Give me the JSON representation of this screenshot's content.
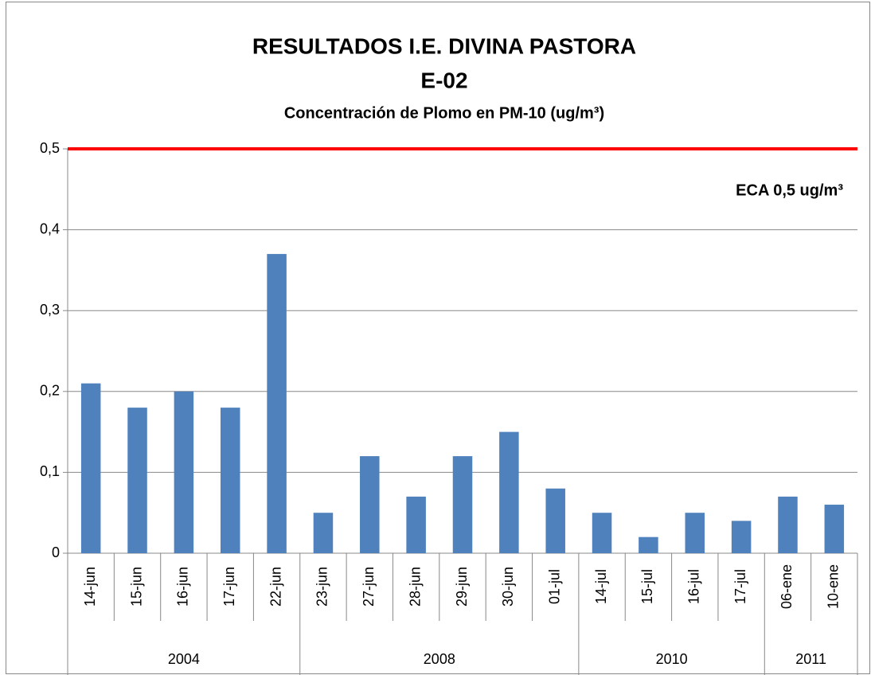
{
  "chart_data": {
    "type": "bar",
    "title": "RESULTADOS I.E. DIVINA PASTORA",
    "subtitle": "E-02",
    "y_label": "Concentración de Plomo en PM-10 (ug/m³)",
    "groups": [
      {
        "label": "2004",
        "categories": [
          "14-jun",
          "15-jun",
          "16-jun",
          "17-jun",
          "22-jun"
        ]
      },
      {
        "label": "2008",
        "categories": [
          "23-jun",
          "27-jun",
          "28-jun",
          "29-jun",
          "30-jun",
          "01-jul"
        ]
      },
      {
        "label": "2010",
        "categories": [
          "14-jul",
          "15-jul",
          "16-jul",
          "17-jul"
        ]
      },
      {
        "label": "2011",
        "categories": [
          "06-ene",
          "10-ene"
        ]
      }
    ],
    "values": [
      0.21,
      0.18,
      0.2,
      0.18,
      0.37,
      0.05,
      0.12,
      0.07,
      0.12,
      0.15,
      0.08,
      0.05,
      0.02,
      0.05,
      0.04,
      0.07,
      0.06
    ],
    "color": "#4f81bd",
    "ylim": [
      0,
      0.5
    ],
    "yticks": [
      0,
      {
        "value": 0.1,
        "label": "0,1"
      },
      {
        "value": 0.2,
        "label": "0,2"
      },
      {
        "value": 0.3,
        "label": "0,3"
      },
      {
        "value": 0.4,
        "label": "0,4"
      },
      {
        "value": 0.5,
        "label": "0,5"
      }
    ],
    "grid": true,
    "reference_line": {
      "value": 0.5,
      "color": "#ff0000",
      "label": "ECA 0,5 ug/m³"
    }
  }
}
